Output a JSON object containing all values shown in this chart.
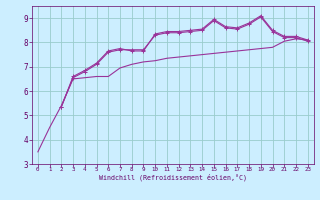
{
  "bg_color": "#cceeff",
  "line_color": "#993399",
  "grid_color": "#99cccc",
  "xlabel": "Windchill (Refroidissement éolien,°C)",
  "xlabel_color": "#660066",
  "tick_color": "#660066",
  "ylim": [
    3,
    9.5
  ],
  "xlim": [
    -0.5,
    23.5
  ],
  "yticks": [
    3,
    4,
    5,
    6,
    7,
    8,
    9
  ],
  "xticks": [
    0,
    1,
    2,
    3,
    4,
    5,
    6,
    7,
    8,
    9,
    10,
    11,
    12,
    13,
    14,
    15,
    16,
    17,
    18,
    19,
    20,
    21,
    22,
    23
  ],
  "curve1_x": [
    0,
    1,
    2,
    3,
    4,
    5,
    6,
    7,
    8,
    9,
    10,
    11,
    12,
    13,
    14,
    15,
    16,
    17,
    18,
    19,
    20,
    21,
    22,
    23
  ],
  "curve1_y": [
    3.5,
    4.5,
    5.4,
    6.5,
    6.55,
    6.6,
    6.6,
    6.95,
    7.1,
    7.2,
    7.25,
    7.35,
    7.4,
    7.45,
    7.5,
    7.55,
    7.6,
    7.65,
    7.7,
    7.75,
    7.8,
    8.05,
    8.15,
    8.1
  ],
  "curve2_x": [
    2,
    3,
    4,
    5,
    6,
    7,
    8,
    9,
    10,
    11,
    12,
    13,
    14,
    15,
    16,
    17,
    18,
    19,
    20,
    21,
    22,
    23
  ],
  "curve2_y": [
    5.35,
    6.6,
    6.85,
    7.15,
    7.65,
    7.75,
    7.65,
    7.65,
    8.35,
    8.45,
    8.45,
    8.5,
    8.55,
    8.95,
    8.65,
    8.6,
    8.8,
    9.1,
    8.5,
    8.25,
    8.25,
    8.1
  ],
  "curve3_x": [
    2,
    3,
    4,
    5,
    6,
    7,
    8,
    9,
    10,
    11,
    12,
    13,
    14,
    15,
    16,
    17,
    18,
    19,
    20,
    21,
    22,
    23
  ],
  "curve3_y": [
    5.35,
    6.55,
    6.8,
    7.1,
    7.6,
    7.7,
    7.7,
    7.7,
    8.3,
    8.4,
    8.4,
    8.45,
    8.5,
    8.9,
    8.6,
    8.55,
    8.75,
    9.05,
    8.45,
    8.2,
    8.2,
    8.05
  ],
  "marker": "+",
  "marker_size": 2.5,
  "lw": 0.8
}
